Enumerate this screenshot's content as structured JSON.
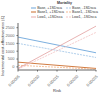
{
  "chart_data": {
    "type": "line",
    "xlabel": "Risk",
    "ylabel": "Incremental cost-effectiveness (£)",
    "x": [
      5e-05,
      0.00025
    ],
    "xlim": [
      5e-05,
      0.00025
    ],
    "ylim": [
      -200,
      2800
    ],
    "xticks": [
      5e-05,
      {
        "value": 0.0001,
        "label": "0.00010"
      },
      0.00015,
      {
        "value": 0.0002,
        "label": "0.00020"
      },
      0.00025
    ],
    "yticks": [
      0,
      500,
      1000,
      1500,
      2000,
      2500
    ],
    "legend": "upper right",
    "legend_title": "Mortality",
    "series": [
      {
        "name": "Base, +1SDsca",
        "color": "#5b9bd5",
        "line_style": "solid",
        "values": [
          1900,
          900
        ]
      },
      {
        "name": "Base, -1SDsca",
        "color": "#9dc3e6",
        "line_style": "dashed",
        "values": [
          1500,
          600
        ]
      },
      {
        "name": "Base1, +1SDsca",
        "color": "#c55a11",
        "line_style": "solid",
        "values": [
          300,
          -100
        ]
      },
      {
        "name": "Base1, -1SDsca",
        "color": "#f4b183",
        "line_style": "dashed",
        "values": [
          100,
          -150
        ]
      },
      {
        "name": "Low1, +1SDsca",
        "color": "#e2a0a0",
        "line_style": "solid",
        "values": [
          -100,
          2600
        ]
      },
      {
        "name": "Low1, -1SDsca",
        "color": "#f2c0c0",
        "line_style": "dashed",
        "values": [
          -150,
          2200
        ]
      }
    ]
  }
}
